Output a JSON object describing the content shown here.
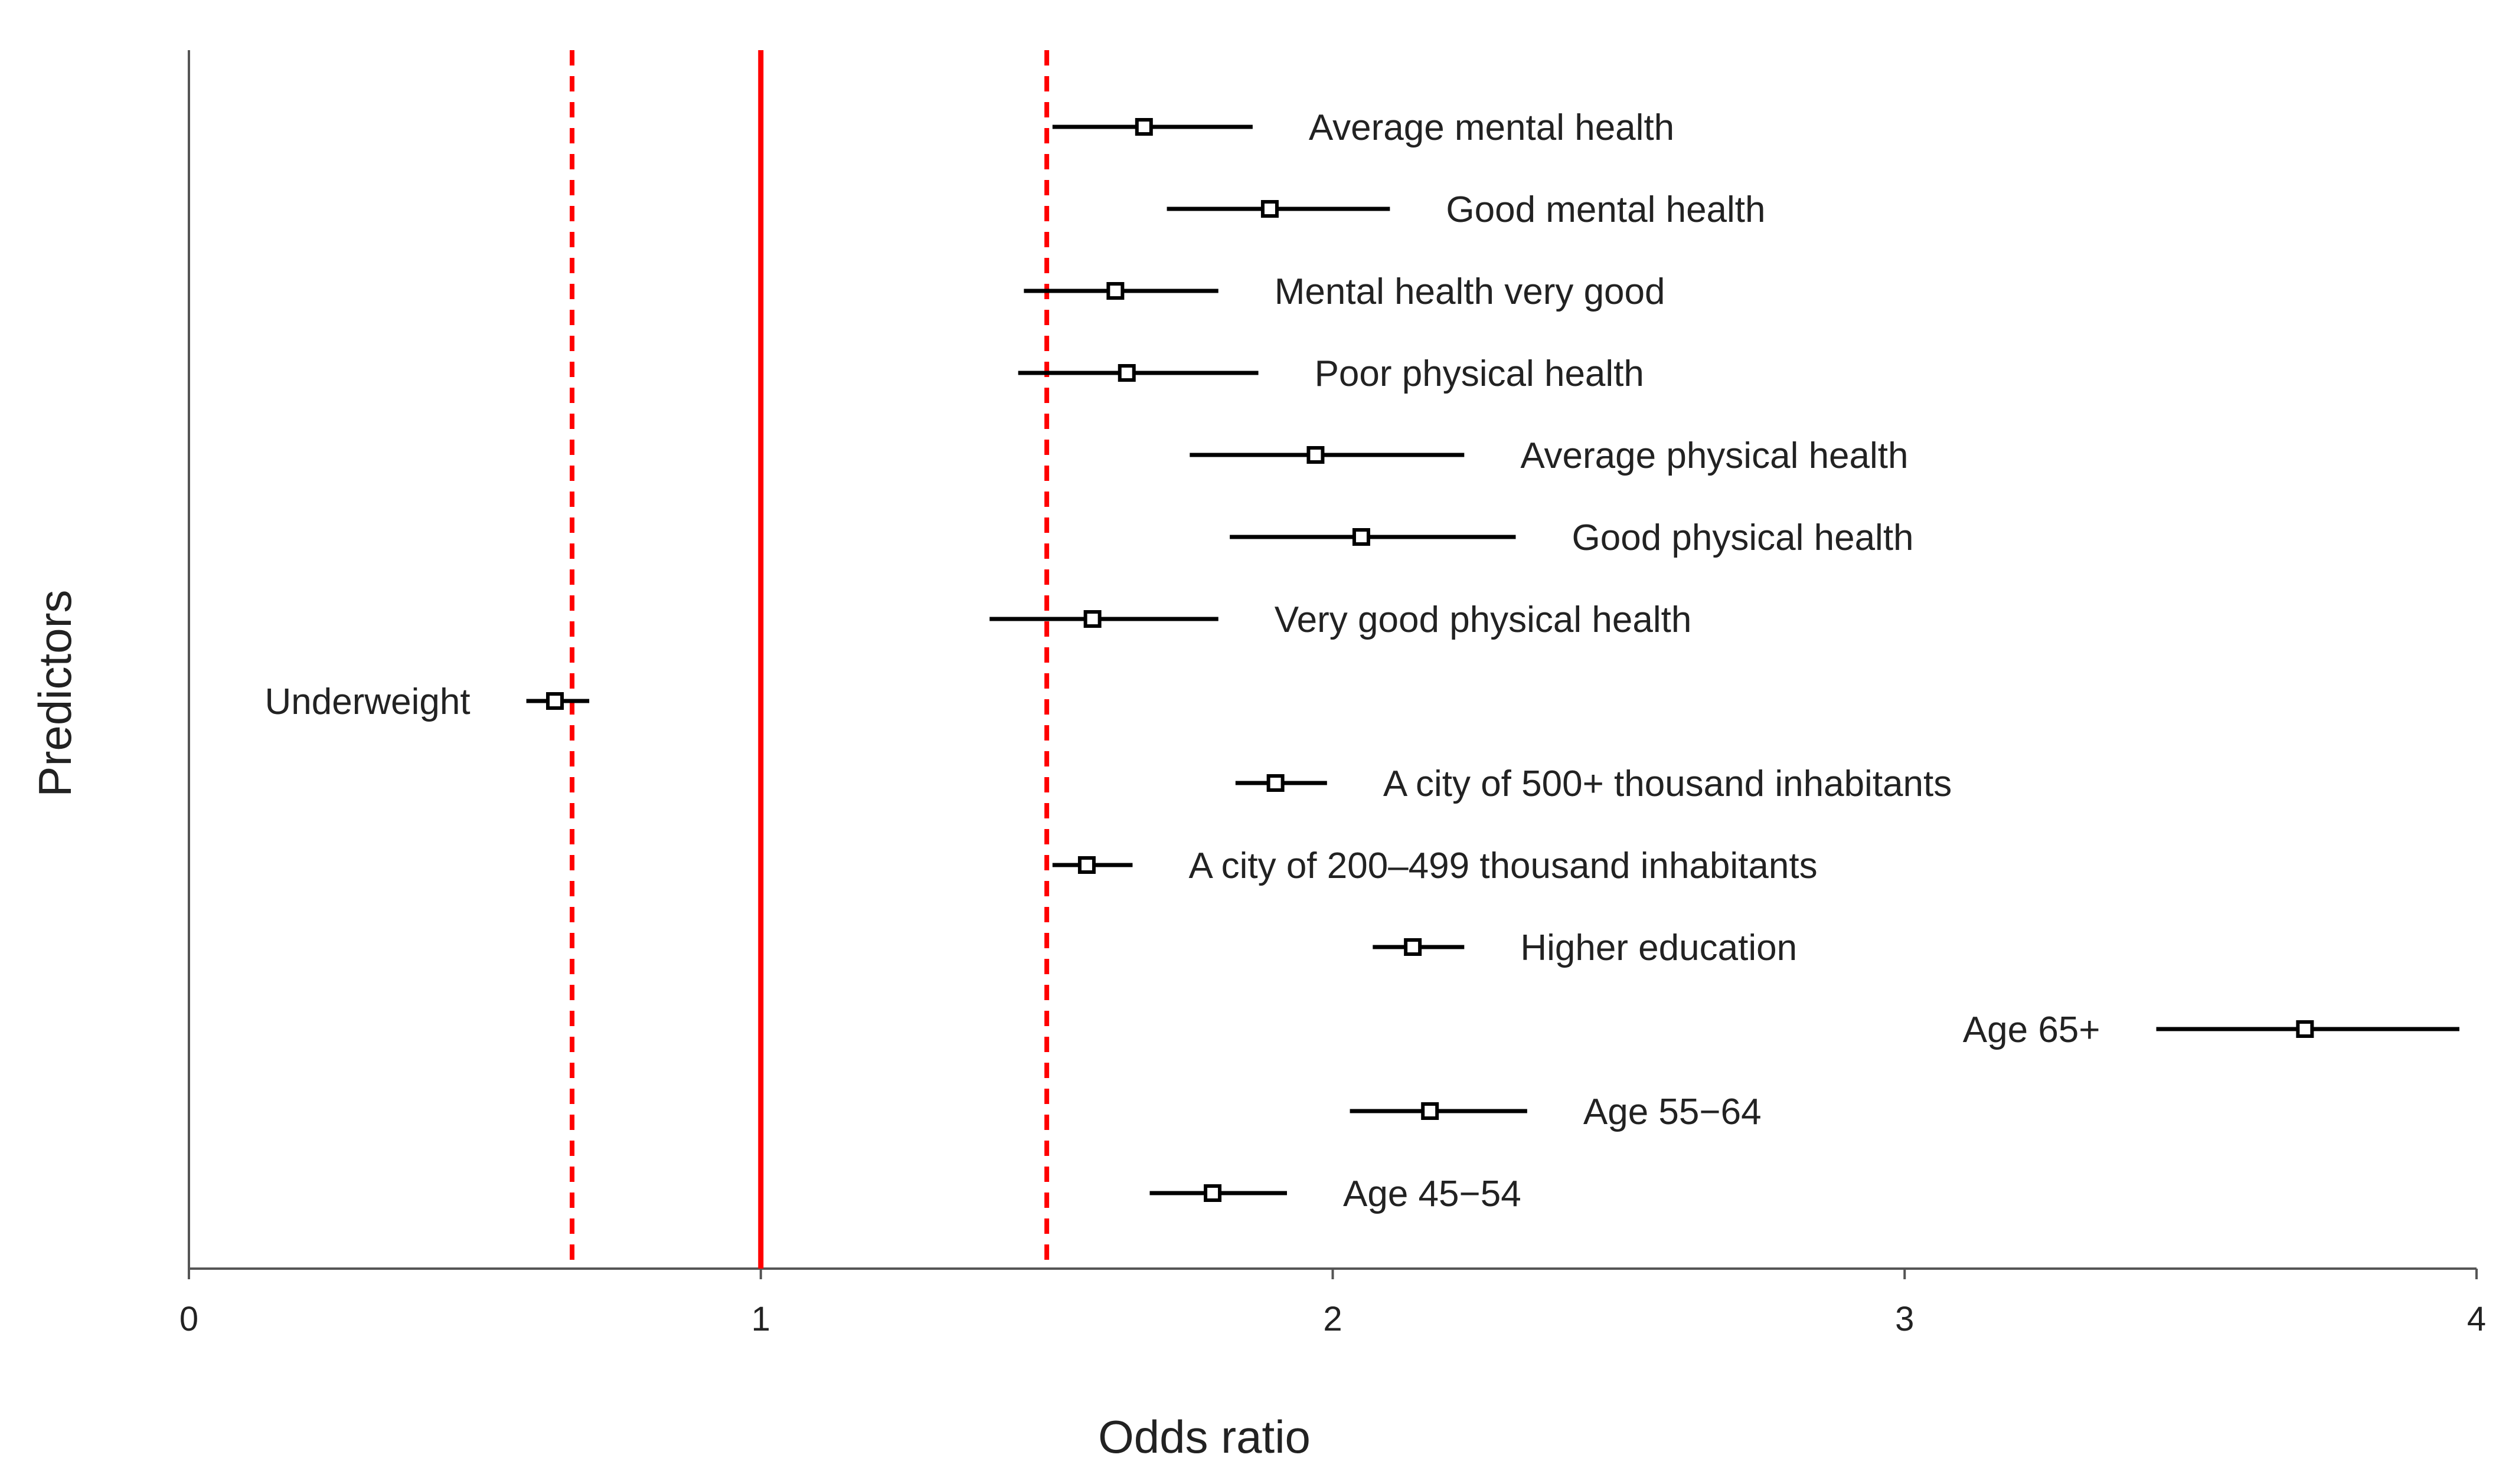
{
  "chart_data": {
    "type": "forest",
    "title": "",
    "xlabel": "Odds ratio",
    "ylabel": "Predictors",
    "xlim": [
      0,
      4
    ],
    "xticks": [
      0,
      1,
      2,
      3,
      4
    ],
    "tick_labels": [
      "0",
      "1",
      "2",
      "3",
      "4"
    ],
    "grid": false,
    "reference_line": 1,
    "threshold_lines": [
      0.67,
      1.5
    ],
    "colors": {
      "axis": "#555555",
      "reference": "#ff0000",
      "threshold": "#ff0000",
      "error_bar": "#000000",
      "marker_fill": "#ffffff",
      "marker_stroke": "#000000",
      "text": "#222222"
    },
    "points": [
      {
        "label": "Average mental health",
        "or": 1.67,
        "low": 1.51,
        "high": 1.86,
        "label_side": "right"
      },
      {
        "label": "Good mental health",
        "or": 1.89,
        "low": 1.71,
        "high": 2.1,
        "label_side": "right"
      },
      {
        "label": "Mental health very good",
        "or": 1.62,
        "low": 1.46,
        "high": 1.8,
        "label_side": "right"
      },
      {
        "label": "Poor physical health",
        "or": 1.64,
        "low": 1.45,
        "high": 1.87,
        "label_side": "right"
      },
      {
        "label": "Average physical health",
        "or": 1.97,
        "low": 1.75,
        "high": 2.23,
        "label_side": "right"
      },
      {
        "label": "Good physical health",
        "or": 2.05,
        "low": 1.82,
        "high": 2.32,
        "label_side": "right"
      },
      {
        "label": "Very good physical health",
        "or": 1.58,
        "low": 1.4,
        "high": 1.8,
        "label_side": "right"
      },
      {
        "label": "Underweight",
        "or": 0.64,
        "low": 0.59,
        "high": 0.7,
        "label_side": "left"
      },
      {
        "label": "A city of 500+ thousand inhabitants",
        "or": 1.9,
        "low": 1.83,
        "high": 1.99,
        "label_side": "right"
      },
      {
        "label": "A city of 200–499 thousand inhabitants",
        "or": 1.57,
        "low": 1.51,
        "high": 1.65,
        "label_side": "right"
      },
      {
        "label": "Higher education",
        "or": 2.14,
        "low": 2.07,
        "high": 2.23,
        "label_side": "right"
      },
      {
        "label": "Age 65+",
        "or": 3.7,
        "low": 3.44,
        "high": 3.97,
        "label_side": "left"
      },
      {
        "label": "Age 55−64",
        "or": 2.17,
        "low": 2.03,
        "high": 2.34,
        "label_side": "right"
      },
      {
        "label": "Age 45−54",
        "or": 1.79,
        "low": 1.68,
        "high": 1.92,
        "label_side": "right"
      }
    ]
  }
}
